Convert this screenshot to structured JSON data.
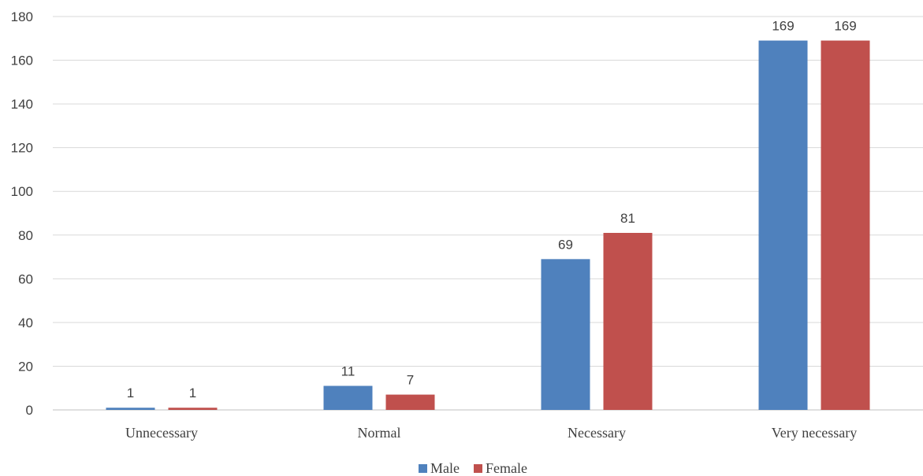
{
  "chart_data": {
    "type": "bar",
    "title": "",
    "xlabel": "",
    "ylabel": "",
    "categories": [
      "Unnecessary",
      "Normal",
      "Necessary",
      "Very necessary"
    ],
    "series": [
      {
        "name": "Male",
        "color": "#4f81bd",
        "values": [
          1,
          11,
          69,
          169
        ]
      },
      {
        "name": "Female",
        "color": "#c0504d",
        "values": [
          1,
          7,
          81,
          169
        ]
      }
    ],
    "ylim": [
      0,
      180
    ],
    "yticks": [
      0,
      20,
      40,
      60,
      80,
      100,
      120,
      140,
      160,
      180
    ],
    "grid": true,
    "legend": "bottom-center",
    "data_labels": true
  }
}
